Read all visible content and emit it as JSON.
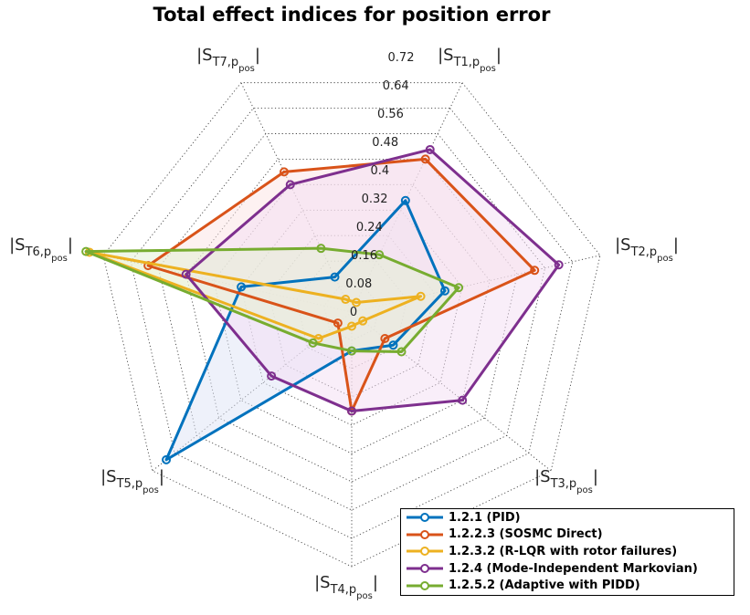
{
  "chart_data": {
    "type": "radar",
    "title": "Total effect indices for position error",
    "axes": [
      {
        "main": "|S",
        "sub1": "T1,p",
        "sub2": "pos",
        "close": "|"
      },
      {
        "main": "|S",
        "sub1": "T2,p",
        "sub2": "pos",
        "close": "|"
      },
      {
        "main": "|S",
        "sub1": "T3,p",
        "sub2": "pos",
        "close": "|"
      },
      {
        "main": "|S",
        "sub1": "T4,p",
        "sub2": "pos",
        "close": "|"
      },
      {
        "main": "|S",
        "sub1": "T5,p",
        "sub2": "pos",
        "close": "|"
      },
      {
        "main": "|S",
        "sub1": "T6,p",
        "sub2": "pos",
        "close": "|"
      },
      {
        "main": "|S",
        "sub1": "T7,p",
        "sub2": "pos",
        "close": "|"
      }
    ],
    "rlim": [
      0,
      0.72
    ],
    "ticks": [
      "0",
      "0.08",
      "0.16",
      "0.24",
      "0.32",
      "0.4",
      "0.48",
      "0.56",
      "0.64",
      "0.72"
    ],
    "tick_values": [
      0,
      0.08,
      0.16,
      0.24,
      0.32,
      0.4,
      0.48,
      0.56,
      0.64,
      0.72
    ],
    "grid": true,
    "legend_position": "bottom-right",
    "series": [
      {
        "name": "1.2.1 (PID)",
        "color": "#0072BD",
        "fill": "#dde3f6",
        "values": [
          0.35,
          0.27,
          0.15,
          0.11,
          0.67,
          0.32,
          0.11
        ]
      },
      {
        "name": "1.2.2.3 (SOSMC Direct)",
        "color": "#D95319",
        "fill": "#fbe4e4",
        "values": [
          0.48,
          0.53,
          0.12,
          0.28,
          0.05,
          0.59,
          0.44
        ]
      },
      {
        "name": "1.2.3.2 (R-LQR with rotor failures)",
        "color": "#EDB120",
        "fill": "#fdf5dd",
        "values": [
          0.03,
          0.2,
          0.04,
          0.04,
          0.12,
          0.76,
          0.04
        ]
      },
      {
        "name": "1.2.4 (Mode-Independent Markovian)",
        "color": "#7E2F8E",
        "fill": "#f3ddf3",
        "values": [
          0.51,
          0.6,
          0.4,
          0.28,
          0.29,
          0.48,
          0.4
        ]
      },
      {
        "name": "1.2.5.2 (Adaptive with PIDD)",
        "color": "#77AC30",
        "fill": "#e2f0d2",
        "values": [
          0.18,
          0.31,
          0.18,
          0.11,
          0.14,
          0.77,
          0.2
        ]
      }
    ]
  }
}
